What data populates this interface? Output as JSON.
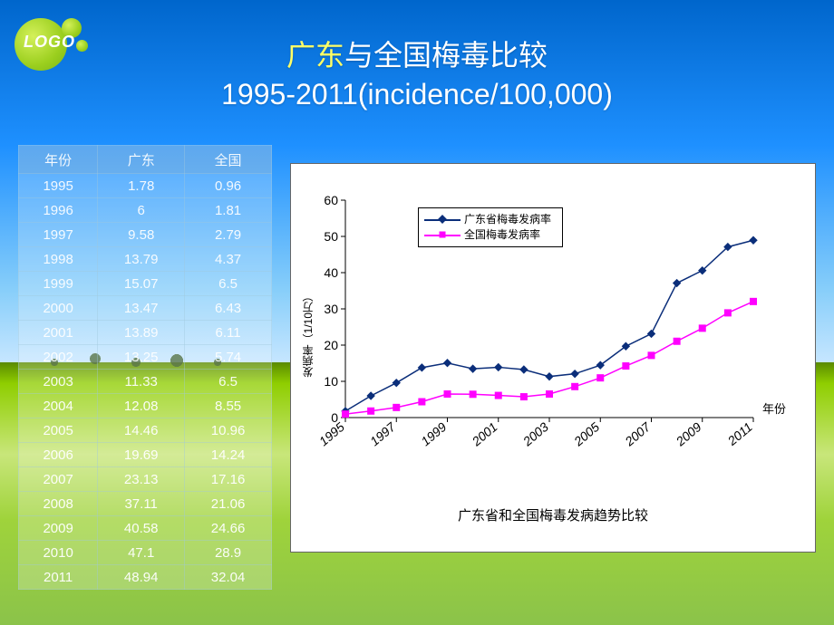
{
  "logo": {
    "text": "LOGO"
  },
  "title": {
    "line1_highlight": "广东",
    "line1_rest": "与全国梅毒比较",
    "line2": "1995-2011(incidence/100,000)"
  },
  "colors": {
    "series_guangdong": "#0b2e7a",
    "series_national": "#ff00ff",
    "axis": "#000000",
    "chart_bg": "#ffffff"
  },
  "table": {
    "headers": [
      "年份",
      "广东",
      "全国"
    ],
    "rows": [
      [
        "1995",
        "1.78",
        "0.96"
      ],
      [
        "1996",
        "6",
        "1.81"
      ],
      [
        "1997",
        "9.58",
        "2.79"
      ],
      [
        "1998",
        "13.79",
        "4.37"
      ],
      [
        "1999",
        "15.07",
        "6.5"
      ],
      [
        "2000",
        "13.47",
        "6.43"
      ],
      [
        "2001",
        "13.89",
        "6.11"
      ],
      [
        "2002",
        "13.25",
        "5.74"
      ],
      [
        "2003",
        "11.33",
        "6.5"
      ],
      [
        "2004",
        "12.08",
        "8.55"
      ],
      [
        "2005",
        "14.46",
        "10.96"
      ],
      [
        "2006",
        "19.69",
        "14.24"
      ],
      [
        "2007",
        "23.13",
        "17.16"
      ],
      [
        "2008",
        "37.11",
        "21.06"
      ],
      [
        "2009",
        "40.58",
        "24.66"
      ],
      [
        "2010",
        "47.1",
        "28.9"
      ],
      [
        "2011",
        "48.94",
        "32.04"
      ]
    ]
  },
  "chart": {
    "type": "line",
    "y_axis_title": "发病率（1/10万）",
    "x_axis_title": "年份",
    "caption": "广东省和全国梅毒发病趋势比较",
    "legend": [
      "广东省梅毒发病率",
      "全国梅毒发病率"
    ],
    "ylim": [
      0,
      60
    ],
    "ytick_step": 10,
    "x_categories": [
      "1995",
      "1996",
      "1997",
      "1998",
      "1999",
      "2000",
      "2001",
      "2002",
      "2003",
      "2004",
      "2005",
      "2006",
      "2007",
      "2008",
      "2009",
      "2010",
      "2011"
    ],
    "x_tick_labels": [
      "1995",
      "1997",
      "1999",
      "2001",
      "2003",
      "2005",
      "2007",
      "2009",
      "2011"
    ],
    "series": [
      {
        "name": "guangdong",
        "color": "#0b2e7a",
        "marker": "diamond",
        "values": [
          1.78,
          6,
          9.58,
          13.79,
          15.07,
          13.47,
          13.89,
          13.25,
          11.33,
          12.08,
          14.46,
          19.69,
          23.13,
          37.11,
          40.58,
          47.1,
          48.94
        ]
      },
      {
        "name": "national",
        "color": "#ff00ff",
        "marker": "square",
        "values": [
          0.96,
          1.81,
          2.79,
          4.37,
          6.5,
          6.43,
          6.11,
          5.74,
          6.5,
          8.55,
          10.96,
          14.24,
          17.16,
          21.06,
          24.66,
          28.9,
          32.04
        ]
      }
    ],
    "tick_fontsize": 14,
    "axis_fontsize": 12,
    "caption_fontsize": 15
  }
}
